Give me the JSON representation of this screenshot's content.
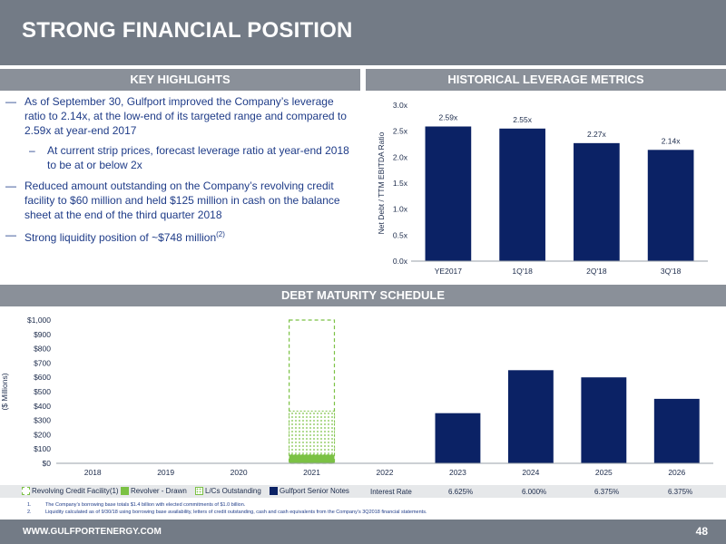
{
  "title": "STRONG FINANCIAL POSITION",
  "key_highlights": {
    "header": "KEY HIGHLIGHTS",
    "bullet1": "As of September 30, Gulfport improved the Company’s leverage ratio to 2.14x, at the low-end of its targeted range and compared to 2.59x at year-end 2017",
    "sub_bullet1": "At current strip prices, forecast leverage ratio at year-end 2018 to be at or below 2x",
    "bullet2": "Reduced amount outstanding on the Company’s revolving credit facility to $60 million and held $125 million in cash on the balance sheet at the end of the third quarter 2018",
    "bullet3": "Strong liquidity position of ~$748 million",
    "bullet3_sup": "(2)"
  },
  "historical_leverage": {
    "header": "HISTORICAL LEVERAGE METRICS"
  },
  "debt_maturity": {
    "header": "DEBT MATURITY SCHEDULE"
  },
  "legend": {
    "facility": "Revolving Credit Facility",
    "facility_sup": "(1)",
    "drawn": "Revolver - Drawn",
    "lcs": "L/Cs Outstanding",
    "notes": "Gulfport Senior Notes",
    "interest_label": "Interest Rate",
    "rates": [
      "6.625%",
      "6.000%",
      "6.375%",
      "6.375%"
    ]
  },
  "footnotes": [
    {
      "num": "1.",
      "text": "The Company’s borrowing base totals $1.4 billion with elected commitments of $1.0 billion."
    },
    {
      "num": "2.",
      "text": "Liquidity calculated as of 9/30/18 using borrowing base availability, letters of credit outstanding, cash and cash equivalents from the Company’s 3Q2018 financial statements."
    }
  ],
  "footer": {
    "url": "WWW.GULFPORTENERGY.COM",
    "page": "48"
  },
  "colors": {
    "navy": "#0b2265",
    "green": "#7bc144",
    "header_gray": "#8a9099",
    "title_gray": "#737b86"
  },
  "chart_data": [
    {
      "type": "bar",
      "title": "HISTORICAL LEVERAGE METRICS",
      "categories": [
        "YE2017",
        "1Q'18",
        "2Q'18",
        "3Q'18"
      ],
      "values": [
        2.59,
        2.55,
        2.27,
        2.14
      ],
      "data_labels": [
        "2.59x",
        "2.55x",
        "2.27x",
        "2.14x"
      ],
      "ylabel": "Net Debt / TTM EBITDA Ratio",
      "ylim": [
        0,
        3.0
      ],
      "yticks": [
        "0.0x",
        "0.5x",
        "1.0x",
        "1.5x",
        "2.0x",
        "2.5x",
        "3.0x"
      ],
      "ytick_values": [
        0,
        0.5,
        1.0,
        1.5,
        2.0,
        2.5,
        3.0
      ],
      "grid": false,
      "color": "#0b2265"
    },
    {
      "type": "bar",
      "title": "DEBT MATURITY SCHEDULE",
      "categories": [
        "2018",
        "2019",
        "2020",
        "2021",
        "2022",
        "2023",
        "2024",
        "2025",
        "2026"
      ],
      "ylabel": "($ Millions)",
      "ylim": [
        0,
        1000
      ],
      "yticks": [
        "$0",
        "$100",
        "$200",
        "$300",
        "$400",
        "$500",
        "$600",
        "$700",
        "$800",
        "$900",
        "$1,000"
      ],
      "ytick_values": [
        0,
        100,
        200,
        300,
        400,
        500,
        600,
        700,
        800,
        900,
        1000
      ],
      "series": [
        {
          "name": "Gulfport Senior Notes",
          "values": [
            0,
            0,
            0,
            0,
            0,
            350,
            650,
            600,
            450
          ]
        },
        {
          "name": "Revolver - Drawn",
          "values": [
            0,
            0,
            0,
            60,
            0,
            0,
            0,
            0,
            0
          ]
        },
        {
          "name": "L/Cs Outstanding",
          "values": [
            0,
            0,
            0,
            305,
            0,
            0,
            0,
            0,
            0
          ]
        },
        {
          "name": "Revolving Credit Facility",
          "values": [
            0,
            0,
            0,
            1000,
            0,
            0,
            0,
            0,
            0
          ]
        }
      ],
      "legend": "bottom",
      "grid": false
    }
  ]
}
